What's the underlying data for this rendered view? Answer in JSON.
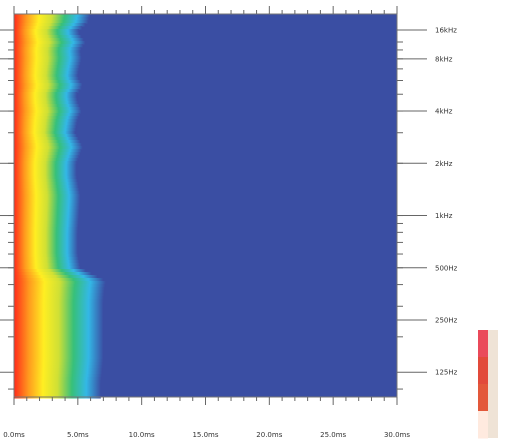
{
  "chart_data": {
    "type": "heatmap",
    "title": "",
    "xlabel": "",
    "ylabel": "",
    "x_axis": {
      "unit": "ms",
      "range": [
        0,
        30
      ],
      "tick_values": [
        0,
        5,
        10,
        15,
        20,
        25,
        30
      ],
      "tick_labels": [
        "0.0ms",
        "5.0ms",
        "10.0ms",
        "15.0ms",
        "20.0ms",
        "25.0ms",
        "30.0ms"
      ]
    },
    "y_axis": {
      "unit": "Hz",
      "scale": "log",
      "range": [
        90,
        14500
      ],
      "tick_values": [
        125,
        250,
        500,
        1000,
        2000,
        4000,
        8000,
        16000
      ],
      "tick_labels": [
        "125Hz",
        "250Hz",
        "500Hz",
        "1kHz",
        "2kHz",
        "4kHz",
        "8kHz",
        "16kHz"
      ]
    },
    "colors": {
      "background": "#3a4ea3",
      "scale": [
        "#3a4ea3",
        "#33b8e6",
        "#37c07a",
        "#cfe035",
        "#ffee22",
        "#ff9a1e",
        "#ff2a1a"
      ],
      "colorbar_scale": [
        "#ea4a5a",
        "#e24a3a",
        "#e3583a",
        "#ffeadf"
      ]
    },
    "decay_profile": {
      "description_units": "frequency_hz -> decay_time_ms (level drops to background)",
      "frequency_hz": [
        90,
        110,
        125,
        150,
        200,
        250,
        320,
        380,
        420,
        500,
        600,
        800,
        1000,
        1300,
        1700,
        2000,
        2500,
        3000,
        3600,
        4000,
        4500,
        5000,
        5600,
        6300,
        7000,
        8000,
        9000,
        10000,
        11500,
        13000,
        14500
      ],
      "decay_ms": [
        6.8,
        6.8,
        6.9,
        7.0,
        7.0,
        7.0,
        7.0,
        7.1,
        7.2,
        5.2,
        5.0,
        5.0,
        5.1,
        5.2,
        4.9,
        4.9,
        5.4,
        4.8,
        5.0,
        5.3,
        5.0,
        4.9,
        5.4,
        5.0,
        5.1,
        5.3,
        5.2,
        5.6,
        5.0,
        5.8,
        6.0
      ]
    },
    "grid": false,
    "legend": "right-bottom colorbar"
  }
}
